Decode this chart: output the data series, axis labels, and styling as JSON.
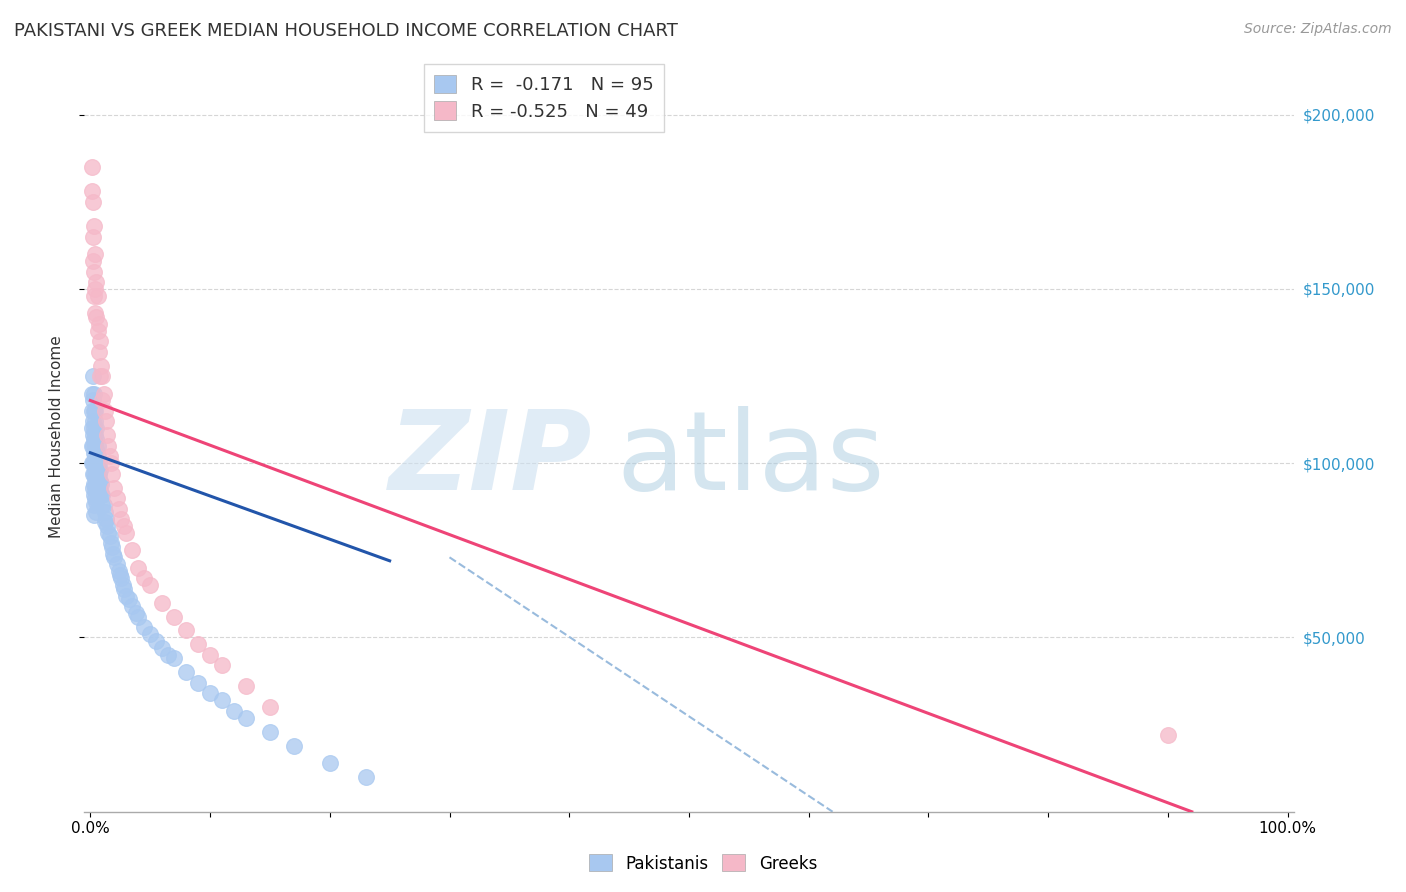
{
  "title": "PAKISTANI VS GREEK MEDIAN HOUSEHOLD INCOME CORRELATION CHART",
  "source": "Source: ZipAtlas.com",
  "ylabel": "Median Household Income",
  "ytick_values": [
    50000,
    100000,
    150000,
    200000
  ],
  "ytick_labels": [
    "$50,000",
    "$100,000",
    "$150,000",
    "$200,000"
  ],
  "ylim": [
    0,
    215000
  ],
  "xlim": [
    -0.005,
    1.005
  ],
  "pakistani_color": "#a8c8f0",
  "greek_color": "#f5b8c8",
  "pakistani_line_color": "#2255aa",
  "greek_line_color": "#ee4477",
  "dashed_line_color": "#99bbdd",
  "title_fontsize": 13,
  "source_fontsize": 10,
  "axis_label_fontsize": 11,
  "tick_fontsize": 11,
  "legend_fontsize": 13,
  "background_color": "#ffffff",
  "grid_color": "#cccccc",
  "pakistani_x": [
    0.001,
    0.001,
    0.001,
    0.001,
    0.001,
    0.002,
    0.002,
    0.002,
    0.002,
    0.002,
    0.002,
    0.002,
    0.002,
    0.003,
    0.003,
    0.003,
    0.003,
    0.003,
    0.003,
    0.003,
    0.003,
    0.003,
    0.003,
    0.003,
    0.004,
    0.004,
    0.004,
    0.004,
    0.004,
    0.004,
    0.004,
    0.004,
    0.004,
    0.005,
    0.005,
    0.005,
    0.005,
    0.005,
    0.005,
    0.005,
    0.005,
    0.005,
    0.006,
    0.006,
    0.006,
    0.006,
    0.007,
    0.007,
    0.007,
    0.007,
    0.008,
    0.008,
    0.008,
    0.009,
    0.009,
    0.01,
    0.01,
    0.011,
    0.012,
    0.012,
    0.013,
    0.014,
    0.015,
    0.016,
    0.017,
    0.018,
    0.019,
    0.02,
    0.022,
    0.024,
    0.025,
    0.026,
    0.027,
    0.028,
    0.03,
    0.032,
    0.035,
    0.038,
    0.04,
    0.045,
    0.05,
    0.055,
    0.06,
    0.065,
    0.07,
    0.08,
    0.09,
    0.1,
    0.11,
    0.12,
    0.13,
    0.15,
    0.17,
    0.2,
    0.23
  ],
  "pakistani_y": [
    120000,
    115000,
    110000,
    105000,
    100000,
    125000,
    118000,
    112000,
    108000,
    105000,
    100000,
    97000,
    93000,
    120000,
    115000,
    110000,
    107000,
    103000,
    100000,
    97000,
    94000,
    91000,
    88000,
    85000,
    115000,
    112000,
    108000,
    105000,
    102000,
    99000,
    96000,
    93000,
    90000,
    110000,
    107000,
    104000,
    101000,
    98000,
    95000,
    92000,
    89000,
    86000,
    105000,
    102000,
    99000,
    96000,
    100000,
    97000,
    94000,
    91000,
    98000,
    95000,
    92000,
    94000,
    91000,
    91000,
    88000,
    88000,
    86000,
    83000,
    84000,
    82000,
    80000,
    79000,
    77000,
    76000,
    74000,
    73000,
    71000,
    69000,
    68000,
    67000,
    65000,
    64000,
    62000,
    61000,
    59000,
    57000,
    56000,
    53000,
    51000,
    49000,
    47000,
    45000,
    44000,
    40000,
    37000,
    34000,
    32000,
    29000,
    27000,
    23000,
    19000,
    14000,
    10000
  ],
  "greek_x": [
    0.001,
    0.001,
    0.002,
    0.002,
    0.002,
    0.003,
    0.003,
    0.003,
    0.004,
    0.004,
    0.004,
    0.005,
    0.005,
    0.006,
    0.006,
    0.007,
    0.007,
    0.008,
    0.008,
    0.009,
    0.01,
    0.01,
    0.011,
    0.012,
    0.013,
    0.014,
    0.015,
    0.016,
    0.017,
    0.018,
    0.02,
    0.022,
    0.024,
    0.026,
    0.028,
    0.03,
    0.035,
    0.04,
    0.045,
    0.05,
    0.06,
    0.07,
    0.08,
    0.09,
    0.1,
    0.11,
    0.13,
    0.15,
    0.9
  ],
  "greek_y": [
    185000,
    178000,
    175000,
    165000,
    158000,
    168000,
    155000,
    148000,
    160000,
    150000,
    143000,
    152000,
    142000,
    148000,
    138000,
    140000,
    132000,
    135000,
    125000,
    128000,
    125000,
    118000,
    120000,
    115000,
    112000,
    108000,
    105000,
    102000,
    100000,
    97000,
    93000,
    90000,
    87000,
    84000,
    82000,
    80000,
    75000,
    70000,
    67000,
    65000,
    60000,
    56000,
    52000,
    48000,
    45000,
    42000,
    36000,
    30000,
    22000
  ],
  "pak_line_x0": 0.0,
  "pak_line_x1": 0.25,
  "pak_line_y0": 103000,
  "pak_line_y1": 72000,
  "greek_line_x0": 0.0,
  "greek_line_x1": 0.92,
  "greek_line_y0": 118000,
  "greek_line_y1": 0,
  "dash_line_x0": 0.3,
  "dash_line_x1": 0.62,
  "dash_line_y0": 73000,
  "dash_line_y1": 0
}
